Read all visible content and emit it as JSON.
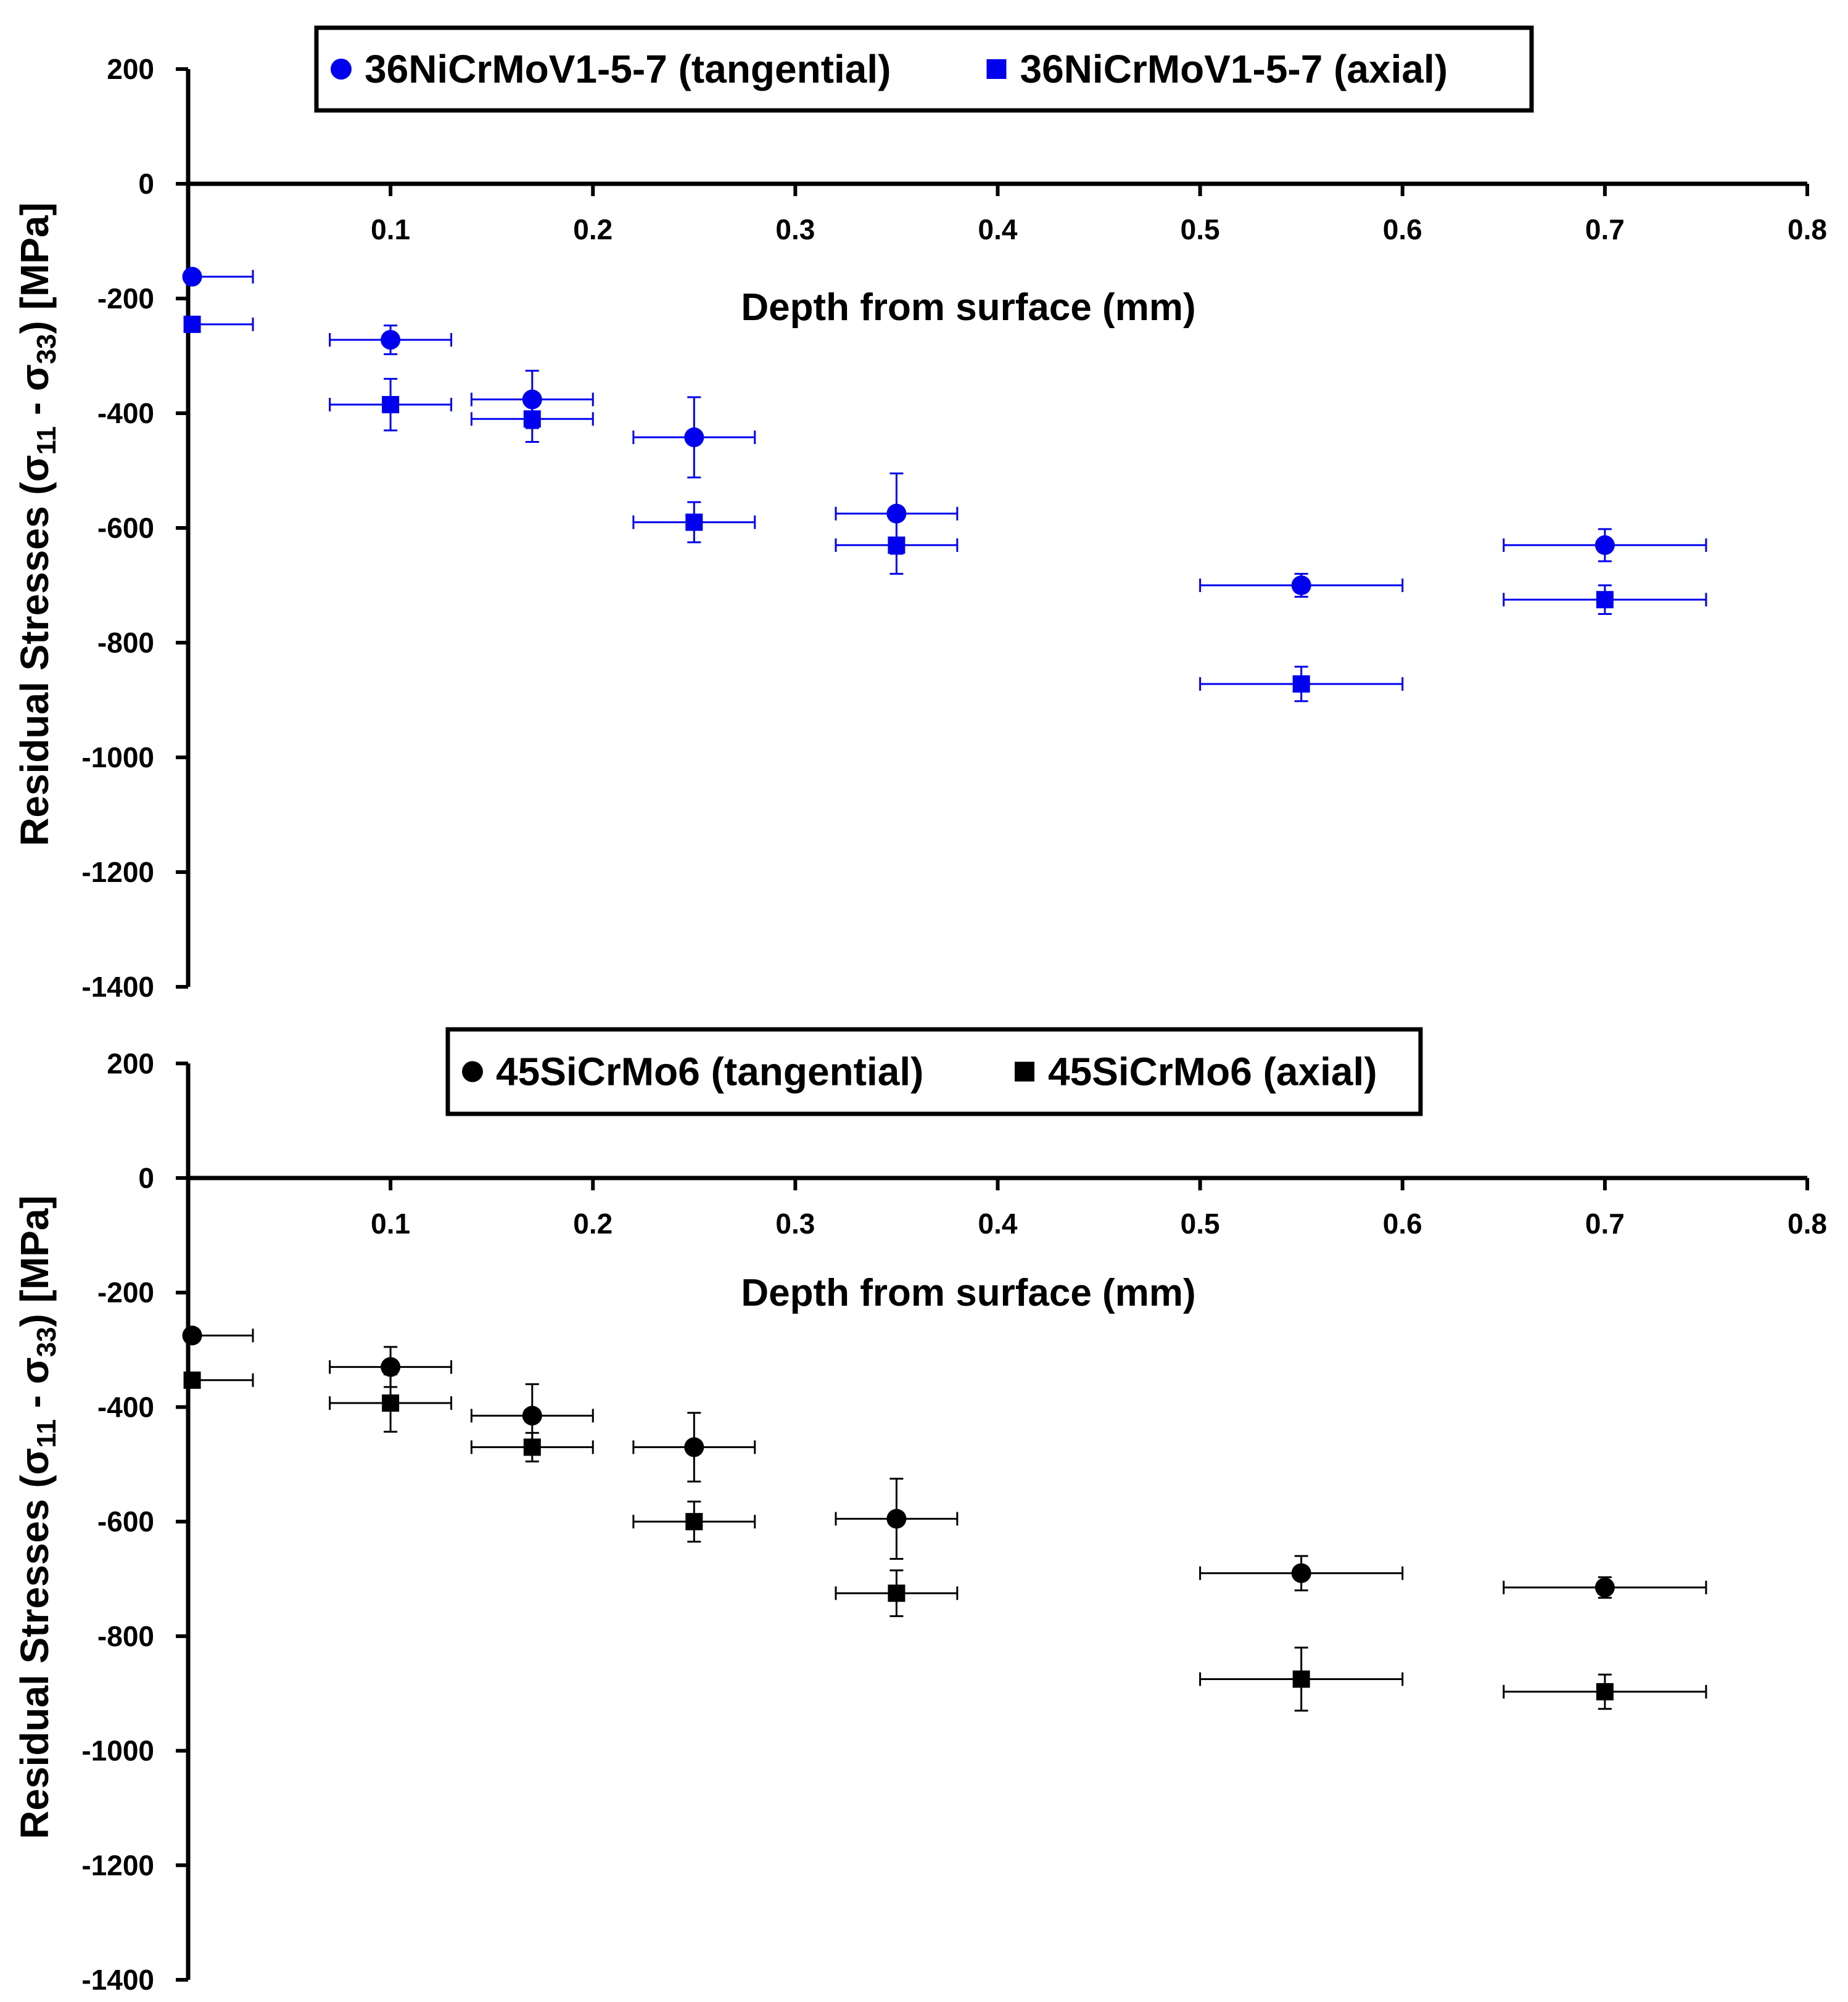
{
  "chart_data": [
    {
      "type": "scatter",
      "xlabel": "Depth from surface (mm)",
      "ylabel": "Residual Stresses (σ₁₁ - σ₃₃) [MPa]",
      "ylabel_parts": {
        "pre": "Residual Stresses (σ",
        "sub1": "11",
        "mid": " - σ",
        "sub2": "33",
        "post": ") [MPa]"
      },
      "xlim": [
        0,
        0.8
      ],
      "ylim": [
        -1400,
        200
      ],
      "x_ticks": [
        "0.1",
        "0.2",
        "0.3",
        "0.4",
        "0.5",
        "0.6",
        "0.7",
        "0.8"
      ],
      "y_ticks": [
        "200",
        "0",
        "-200",
        "-400",
        "-600",
        "-800",
        "-1000",
        "-1200",
        "-1400"
      ],
      "grid": false,
      "legend_position": "top-center",
      "series": [
        {
          "name": "36NiCrMoV1-5-7 (tangential)",
          "marker": "circle",
          "color": "#0000ee",
          "x": [
            0.002,
            0.1,
            0.17,
            0.25,
            0.35,
            0.55,
            0.7
          ],
          "y": [
            -162,
            -272,
            -376,
            -442,
            -575,
            -700,
            -630
          ],
          "x_err": [
            0.03,
            0.03,
            0.03,
            0.03,
            0.03,
            0.05,
            0.05
          ],
          "y_err": [
            0,
            25,
            50,
            70,
            70,
            20,
            28
          ]
        },
        {
          "name": "36NiCrMoV1-5-7 (axial)",
          "marker": "square",
          "color": "#0000ee",
          "x": [
            0.002,
            0.1,
            0.17,
            0.25,
            0.35,
            0.55,
            0.7
          ],
          "y": [
            -245,
            -385,
            -410,
            -590,
            -630,
            -872,
            -725
          ],
          "x_err": [
            0.03,
            0.03,
            0.03,
            0.03,
            0.03,
            0.05,
            0.05
          ],
          "y_err": [
            0,
            45,
            40,
            35,
            50,
            30,
            25
          ]
        }
      ]
    },
    {
      "type": "scatter",
      "xlabel": "Depth from surface (mm)",
      "ylabel": "Residual Stresses (σ₁₁ - σ₃₃) [MPa]",
      "ylabel_parts": {
        "pre": "Residual Stresses (σ",
        "sub1": "11",
        "mid": " - σ",
        "sub2": "33",
        "post": ") [MPa]"
      },
      "xlim": [
        0,
        0.8
      ],
      "ylim": [
        -1400,
        200
      ],
      "x_ticks": [
        "0.1",
        "0.2",
        "0.3",
        "0.4",
        "0.5",
        "0.6",
        "0.7",
        "0.8"
      ],
      "y_ticks": [
        "200",
        "0",
        "-200",
        "-400",
        "-600",
        "-800",
        "-1000",
        "-1200",
        "-1400"
      ],
      "grid": false,
      "legend_position": "top-center",
      "series": [
        {
          "name": "45SiCrMo6 (tangential)",
          "marker": "circle",
          "color": "#000000",
          "x": [
            0.002,
            0.1,
            0.17,
            0.25,
            0.35,
            0.55,
            0.7
          ],
          "y": [
            -275,
            -330,
            -415,
            -470,
            -595,
            -690,
            -715
          ],
          "x_err": [
            0.03,
            0.03,
            0.03,
            0.03,
            0.03,
            0.05,
            0.05
          ],
          "y_err": [
            0,
            35,
            55,
            60,
            70,
            30,
            18
          ]
        },
        {
          "name": "45SiCrMo6 (axial)",
          "marker": "square",
          "color": "#000000",
          "x": [
            0.002,
            0.1,
            0.17,
            0.25,
            0.35,
            0.55,
            0.7
          ],
          "y": [
            -353,
            -393,
            -470,
            -600,
            -725,
            -875,
            -897
          ],
          "x_err": [
            0.03,
            0.03,
            0.03,
            0.03,
            0.03,
            0.05,
            0.05
          ],
          "y_err": [
            0,
            50,
            25,
            35,
            40,
            55,
            30
          ]
        }
      ]
    }
  ]
}
